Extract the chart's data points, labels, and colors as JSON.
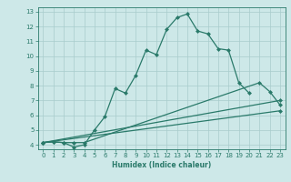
{
  "xlabel": "Humidex (Indice chaleur)",
  "bg_color": "#cde8e8",
  "grid_color": "#a8cccc",
  "line_color": "#2a7a6a",
  "xlim": [
    -0.5,
    23.5
  ],
  "ylim": [
    3.7,
    13.3
  ],
  "xticks": [
    0,
    1,
    2,
    3,
    4,
    5,
    6,
    7,
    8,
    9,
    10,
    11,
    12,
    13,
    14,
    15,
    16,
    17,
    18,
    19,
    20,
    21,
    22,
    23
  ],
  "yticks": [
    4,
    5,
    6,
    7,
    8,
    9,
    10,
    11,
    12,
    13
  ],
  "line1_x": [
    0,
    1,
    2,
    3,
    4,
    5,
    6,
    7,
    8,
    9,
    10,
    11,
    12,
    13,
    14,
    15,
    16,
    17,
    18,
    19,
    20
  ],
  "line1_y": [
    4.15,
    4.2,
    4.15,
    3.85,
    4.0,
    5.0,
    5.9,
    7.8,
    7.5,
    8.7,
    10.4,
    10.1,
    11.8,
    12.6,
    12.85,
    11.7,
    11.5,
    10.5,
    10.4,
    8.2,
    7.5
  ],
  "line2_x": [
    0,
    1,
    2,
    3,
    4,
    21,
    22,
    23
  ],
  "line2_y": [
    4.15,
    4.2,
    4.15,
    4.15,
    4.15,
    8.2,
    7.6,
    6.7
  ],
  "line3_x": [
    0,
    23
  ],
  "line3_y": [
    4.15,
    7.0
  ],
  "line4_x": [
    0,
    23
  ],
  "line4_y": [
    4.15,
    6.3
  ]
}
